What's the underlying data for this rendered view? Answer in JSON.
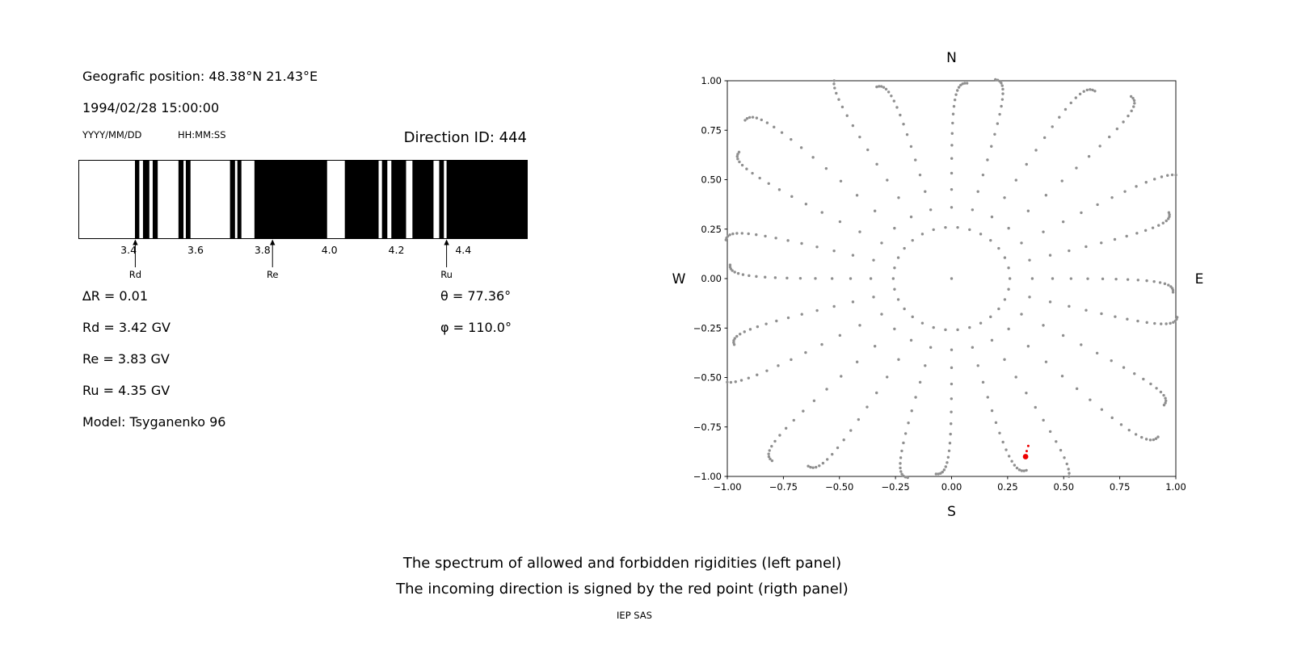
{
  "page": {
    "captions": [
      "The spectrum of allowed and forbidden rigidities (left panel)",
      "The incoming direction is signed by the red point (rigth panel)"
    ],
    "credit": "IEP SAS"
  },
  "left_panel": {
    "geo_position": "Geografic position: 48.38°N 21.43°E",
    "datetime": "1994/02/28 15:00:00",
    "date_format": "YYYY/MM/DD",
    "time_format": "HH:MM:SS",
    "direction_id": "Direction ID: 444",
    "params_left": [
      "∆R = 0.01",
      "Rd = 3.42 GV",
      "Re = 3.83 GV",
      "Ru = 4.35 GV",
      "Model: Tsyganenko 96"
    ],
    "params_right": [
      "θ = 77.36°",
      "φ = 110.0°"
    ]
  },
  "chart_data": [
    {
      "type": "bar",
      "description": "Barcode spectrum: black bands = allowed rigidities, white = forbidden",
      "x_range": [
        3.25,
        4.59
      ],
      "x_ticks": [
        3.4,
        3.6,
        3.8,
        4.0,
        4.2,
        4.4
      ],
      "x_tick_labels": [
        "3.4",
        "3.6",
        "3.8",
        "4.0",
        "4.2",
        "4.4"
      ],
      "band_color": "#000000",
      "allowed_bands": [
        [
          3.419,
          3.432
        ],
        [
          3.443,
          3.462
        ],
        [
          3.472,
          3.487
        ],
        [
          3.549,
          3.564
        ],
        [
          3.571,
          3.585
        ],
        [
          3.703,
          3.718
        ],
        [
          3.725,
          3.737
        ],
        [
          3.776,
          3.993
        ],
        [
          4.046,
          4.147
        ],
        [
          4.157,
          4.173
        ],
        [
          4.185,
          4.229
        ],
        [
          4.248,
          4.311
        ],
        [
          4.328,
          4.342
        ],
        [
          4.35,
          4.59
        ]
      ],
      "markers": [
        {
          "label": "Rd",
          "x": 3.42
        },
        {
          "label": "Re",
          "x": 3.83
        },
        {
          "label": "Ru",
          "x": 4.35
        }
      ]
    },
    {
      "type": "scatter",
      "description": "Incoming/asymptotic direction map; gray dotted radial spokes, red point marks incoming direction",
      "xlim": [
        -1.0,
        1.0
      ],
      "ylim": [
        -1.0,
        1.0
      ],
      "ticks": [
        -1.0,
        -0.75,
        -0.5,
        -0.25,
        0.0,
        0.25,
        0.5,
        0.75,
        1.0
      ],
      "tick_labels": [
        "−1.00",
        "−0.75",
        "−0.50",
        "−0.25",
        "0.00",
        "0.25",
        "0.50",
        "0.75",
        "1.00"
      ],
      "compass": {
        "north": "N",
        "south": "S",
        "east": "E",
        "west": "W"
      },
      "dot_color": "#8f8f8f",
      "red_color": "#ee0000",
      "red_point": {
        "x": 0.33,
        "y": -0.9
      },
      "red_trail": [
        [
          0.335,
          -0.872
        ],
        [
          0.342,
          -0.846
        ]
      ],
      "spokes": {
        "count": 24,
        "start_angle_deg": 0,
        "step_deg": 15,
        "points_per_spoke": 17,
        "r_inner": 0.36,
        "r_outer_cardinal": 0.99,
        "r_outer_cap": 1.22,
        "cluster_exponent": 2.4,
        "curl_deg": 4
      },
      "inner_ring": {
        "radius": 0.26,
        "count": 30
      },
      "center_dot": true
    }
  ]
}
